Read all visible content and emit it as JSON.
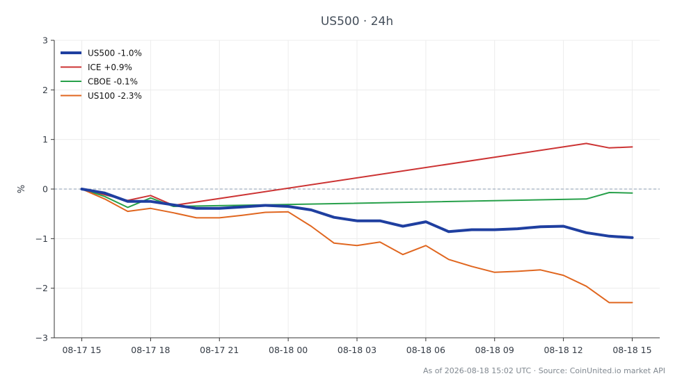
{
  "chart_data": {
    "type": "line",
    "title": "US500 · 24h",
    "ylabel": "%",
    "xlabel": "",
    "ylim": [
      -3,
      3
    ],
    "yticks": [
      3,
      2,
      1,
      0,
      -1,
      -2,
      -3
    ],
    "ytick_labels": [
      "3",
      "2",
      "1",
      "0",
      "−1",
      "−2",
      "−3"
    ],
    "xticks": [
      0,
      3,
      6,
      9,
      12,
      15,
      18,
      21,
      24
    ],
    "xtick_labels": [
      "08-17 15",
      "08-17 18",
      "08-17 21",
      "08-18 00",
      "08-18 03",
      "08-18 06",
      "08-18 09",
      "08-18 12",
      "08-18 15"
    ],
    "xlim": [
      -1.2,
      25.2
    ],
    "grid": true,
    "zero_line": true,
    "legend_position": "top-left",
    "series": [
      {
        "name": "US500 -1.0%",
        "color": "#1f3fa0",
        "width": 4,
        "x": [
          0,
          1,
          2,
          3,
          4,
          5,
          6,
          7,
          8,
          9,
          10,
          11,
          12,
          13,
          14,
          15,
          16,
          17,
          18,
          19,
          20,
          21,
          22,
          23,
          24
        ],
        "values": [
          0,
          -0.08,
          -0.25,
          -0.25,
          -0.32,
          -0.39,
          -0.39,
          -0.36,
          -0.33,
          -0.35,
          -0.42,
          -0.57,
          -0.64,
          -0.64,
          -0.75,
          -0.66,
          -0.86,
          -0.82,
          -0.82,
          -0.8,
          -0.76,
          -0.75,
          -0.88,
          -0.95,
          -0.98
        ]
      },
      {
        "name": "ICE +0.9%",
        "color": "#cc3333",
        "width": 2,
        "x": [
          0,
          2,
          3,
          4,
          22,
          23,
          24
        ],
        "values": [
          0,
          -0.23,
          -0.13,
          -0.33,
          0.92,
          0.83,
          0.85
        ]
      },
      {
        "name": "CBOE -0.1%",
        "color": "#27a04a",
        "width": 2,
        "x": [
          0,
          1,
          2,
          3,
          4,
          8,
          22,
          23,
          24
        ],
        "values": [
          0,
          -0.15,
          -0.37,
          -0.18,
          -0.35,
          -0.32,
          -0.2,
          -0.07,
          -0.08
        ]
      },
      {
        "name": "US100 -2.3%",
        "color": "#e0661f",
        "width": 2,
        "x": [
          0,
          1,
          2,
          3,
          4,
          5,
          6,
          7,
          8,
          9,
          10,
          11,
          12,
          13,
          14,
          15,
          16,
          17,
          18,
          19,
          20,
          21,
          22,
          23,
          24
        ],
        "values": [
          0,
          -0.2,
          -0.45,
          -0.39,
          -0.48,
          -0.58,
          -0.58,
          -0.53,
          -0.47,
          -0.46,
          -0.75,
          -1.09,
          -1.14,
          -1.07,
          -1.32,
          -1.14,
          -1.42,
          -1.56,
          -1.68,
          -1.66,
          -1.63,
          -1.74,
          -1.96,
          -2.29,
          -2.29
        ]
      }
    ]
  },
  "footer": {
    "source": "As of 2026-08-18 15:02 UTC · Source: CoinUnited.io market API"
  }
}
